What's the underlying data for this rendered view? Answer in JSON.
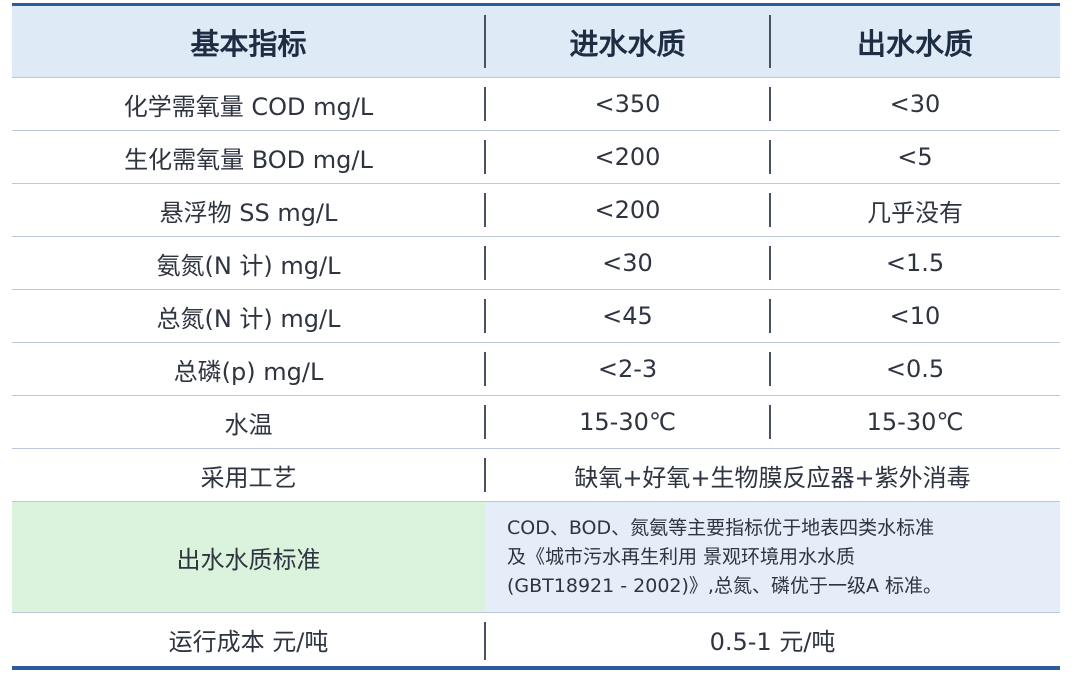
{
  "table": {
    "header": [
      "基本指标",
      "进水水质",
      "出水水质"
    ],
    "rows": [
      [
        "化学需氧量 COD mg/L",
        "<350",
        "<30"
      ],
      [
        "生化需氧量 BOD mg/L",
        "<200",
        "<5"
      ],
      [
        "悬浮物 SS mg/L",
        "<200",
        "几乎没有"
      ],
      [
        "氨氮(N 计) mg/L",
        "<30",
        "<1.5"
      ],
      [
        "总氮(N 计) mg/L",
        "<45",
        "<10"
      ],
      [
        "总磷(p) mg/L",
        "<2-3",
        "<0.5"
      ],
      [
        "水温",
        "15-30℃",
        "15-30℃"
      ],
      [
        "采用工艺",
        "缺氧+好氧+生物膜反应器+紫外消毒"
      ],
      [
        "出水水质标准",
        [
          "COD、BOD、氮氨等主要指标优于地表四类水标准",
          "及《城市污水再生利用 景观环境用水水质",
          "(GBT18921 - 2002)》,总氮、磷优于一级A 标准。"
        ]
      ],
      [
        "运行成本 元/吨",
        "0.5-1 元/吨"
      ]
    ]
  }
}
